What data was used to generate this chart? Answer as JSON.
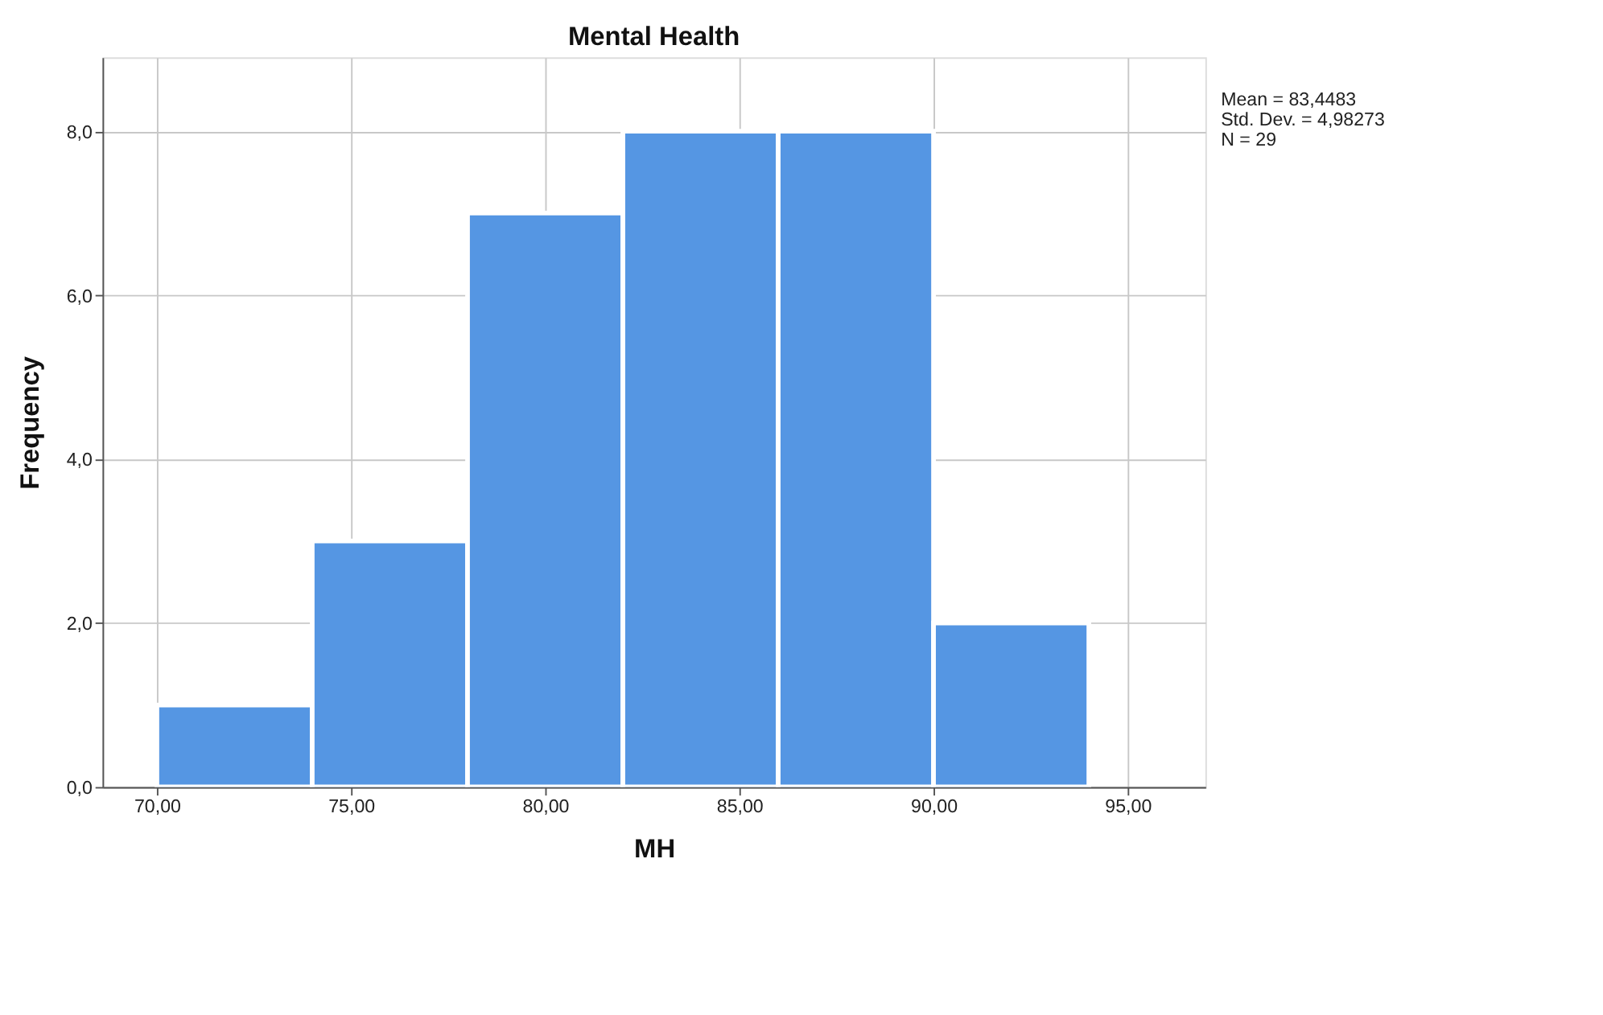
{
  "chart_data": {
    "type": "histogram",
    "title": "Mental Health",
    "xlabel": "MH",
    "ylabel": "Frequency",
    "bins": [
      70,
      74,
      78,
      82,
      86,
      90,
      94
    ],
    "values": [
      1,
      3,
      7,
      8,
      8,
      2
    ],
    "color": "#5596e3",
    "xlim": [
      68.6,
      97
    ],
    "xticks": [
      {
        "value": 70,
        "label": "70,00"
      },
      {
        "value": 75,
        "label": "75,00"
      },
      {
        "value": 80,
        "label": "80,00"
      },
      {
        "value": 85,
        "label": "85,00"
      },
      {
        "value": 90,
        "label": "90,00"
      },
      {
        "value": 95,
        "label": "95,00"
      }
    ],
    "ylim": [
      0,
      8.9
    ],
    "yticks": [
      {
        "value": 0,
        "label": "0,0"
      },
      {
        "value": 2,
        "label": "2,0"
      },
      {
        "value": 4,
        "label": "4,0"
      },
      {
        "value": 6,
        "label": "6,0"
      },
      {
        "value": 8,
        "label": "8,0"
      }
    ],
    "grid": true,
    "annotations": [
      "Mean = 83,4483",
      "Std. Dev. = 4,98273",
      "N = 29"
    ]
  }
}
